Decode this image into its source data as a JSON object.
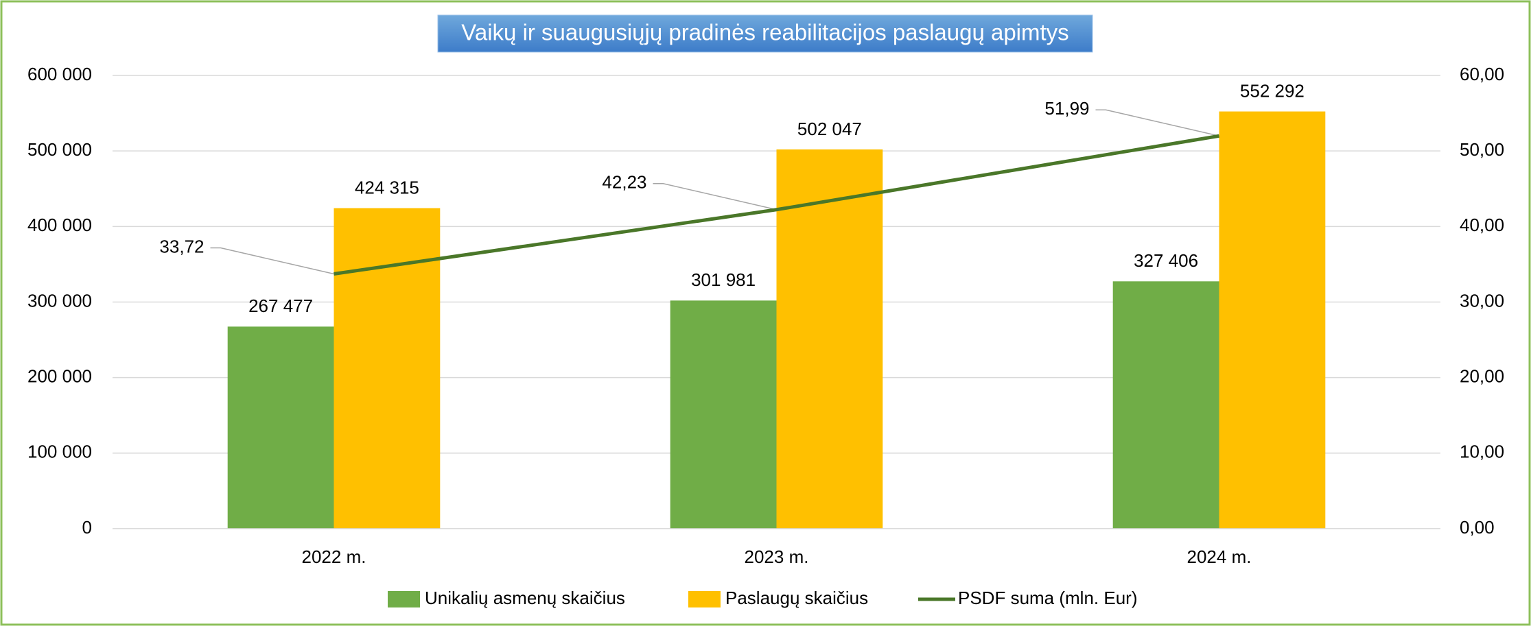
{
  "chart_data": {
    "type": "bar",
    "title": "Vaikų ir suaugusiųjų pradinės reabilitacijos paslaugų apimtys",
    "categories": [
      "2022 m.",
      "2023 m.",
      "2024 m."
    ],
    "series": [
      {
        "name": "Unikalių asmenų skaičius",
        "color": "#70ad47",
        "values": [
          267477,
          301981,
          327406
        ],
        "value_labels": [
          "267 477",
          "301 981",
          "327 406"
        ]
      },
      {
        "name": "Paslaugų skaičius",
        "color": "#ffc000",
        "values": [
          424315,
          502047,
          552292
        ],
        "value_labels": [
          "424 315",
          "502 047",
          "552 292"
        ]
      },
      {
        "name": "PSDF suma (mln. Eur)",
        "color": "#4a7729",
        "type": "line",
        "axis": "y2",
        "values": [
          33.72,
          42.23,
          51.99
        ],
        "value_labels": [
          "33,72",
          "42,23",
          "51,99"
        ]
      }
    ],
    "ylim": [
      0,
      600000
    ],
    "yticks": [
      0,
      {
        "value": 100000,
        "label": "100 000"
      },
      {
        "value": 200000,
        "label": "200 000"
      },
      {
        "value": 300000,
        "label": "300 000"
      },
      {
        "value": 400000,
        "label": "400 000"
      },
      {
        "value": 500000,
        "label": "500 000"
      },
      {
        "value": 600000,
        "label": "600 000"
      }
    ],
    "y2lim": [
      0,
      60
    ],
    "y2ticks": [
      {
        "value": 0,
        "label": "0,00"
      },
      {
        "value": 10,
        "label": "10,00"
      },
      {
        "value": 20,
        "label": "20,00"
      },
      {
        "value": 30,
        "label": "30,00"
      },
      {
        "value": 40,
        "label": "40,00"
      },
      {
        "value": 50,
        "label": "50,00"
      },
      {
        "value": 60,
        "label": "60,00"
      }
    ],
    "grid": true,
    "legend": "bottom"
  }
}
